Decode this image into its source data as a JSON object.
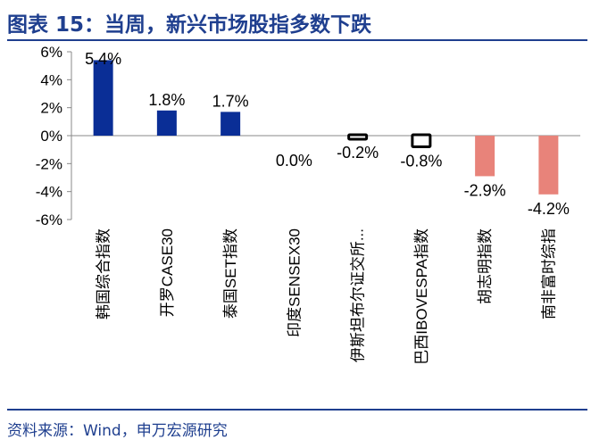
{
  "header": {
    "title": "图表 15：当周，新兴市场股指多数下跌"
  },
  "footer": {
    "source": "资料来源：Wind，申万宏源研究"
  },
  "chart_data": {
    "type": "bar",
    "categories": [
      "韩国综合指数",
      "开罗CASE30",
      "泰国SET指数",
      "印度SENSEX30",
      "伊斯坦布尔证交所...",
      "巴西IBOVESPA指数",
      "胡志明指数",
      "南非富时综指"
    ],
    "values": [
      5.4,
      1.8,
      1.7,
      0.0,
      -0.2,
      -0.8,
      -2.9,
      -4.2
    ],
    "data_labels": [
      "5.4%",
      "1.8%",
      "1.7%",
      "0.0%",
      "-0.2%",
      "-0.8%",
      "-2.9%",
      "-4.2%"
    ],
    "y_ticks": [
      6,
      4,
      2,
      0,
      -2,
      -4,
      -6
    ],
    "y_tick_labels": [
      "6%",
      "4%",
      "2%",
      "0%",
      "-2%",
      "-4%",
      "-6%"
    ],
    "ylim": [
      -6,
      6
    ],
    "colors": {
      "positive": "#0a2e96",
      "negative": "#e8837a",
      "small_negative_fill": "#ffffff",
      "small_negative_stroke": "#000000",
      "axis": "#888888",
      "text": "#000000"
    },
    "grid": false,
    "title": "",
    "xlabel": "",
    "ylabel": ""
  }
}
